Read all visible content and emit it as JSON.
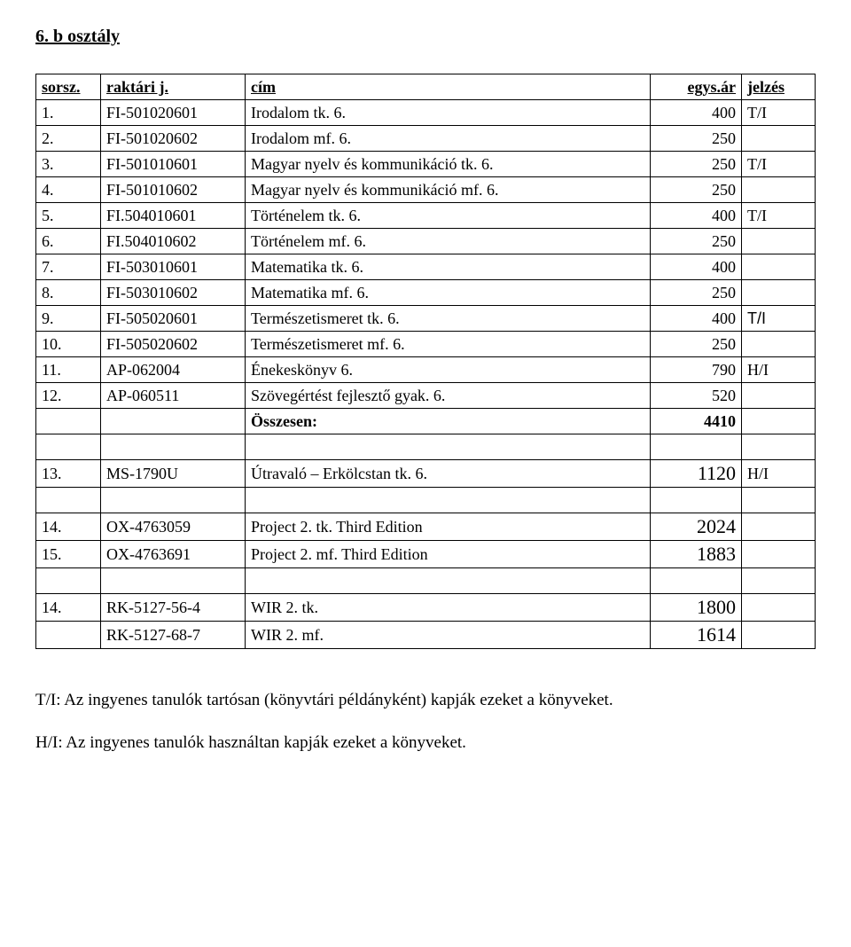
{
  "title": "6. b osztály",
  "headers": {
    "sorsz": "sorsz.",
    "raktari": "raktári j.",
    "cim": "cím",
    "ar": "egys.ár",
    "jelzes": "jelzés"
  },
  "rows": [
    {
      "sorsz": "1.",
      "raktari": "FI-501020601",
      "cim": "Irodalom tk. 6.",
      "ar": "400",
      "jelzes": "T/I"
    },
    {
      "sorsz": "2.",
      "raktari": "FI-501020602",
      "cim": "Irodalom mf. 6.",
      "ar": "250",
      "jelzes": ""
    },
    {
      "sorsz": "3.",
      "raktari": "FI-501010601",
      "cim": "Magyar nyelv és kommunikáció tk. 6.",
      "ar": "250",
      "jelzes": "T/I"
    },
    {
      "sorsz": "4.",
      "raktari": "FI-501010602",
      "cim": "Magyar nyelv és kommunikáció mf. 6.",
      "ar": "250",
      "jelzes": ""
    },
    {
      "sorsz": "5.",
      "raktari": "FI.504010601",
      "cim": "Történelem tk. 6.",
      "ar": "400",
      "jelzes": "T/I"
    },
    {
      "sorsz": "6.",
      "raktari": "FI.504010602",
      "cim": "Történelem mf. 6.",
      "ar": "250",
      "jelzes": ""
    },
    {
      "sorsz": "7.",
      "raktari": "FI-503010601",
      "cim": "Matematika tk. 6.",
      "ar": "400",
      "jelzes": ""
    },
    {
      "sorsz": "8.",
      "raktari": "FI-503010602",
      "cim": "Matematika mf. 6.",
      "ar": "250",
      "jelzes": ""
    },
    {
      "sorsz": "9.",
      "raktari": "FI-505020601",
      "cim": "Természetismeret tk. 6.",
      "ar": "400",
      "jelzes": "T/I",
      "jelzes_font": "arial"
    },
    {
      "sorsz": "10.",
      "raktari": "FI-505020602",
      "cim": "Természetismeret mf. 6.",
      "ar": "250",
      "jelzes": ""
    },
    {
      "sorsz": "11.",
      "raktari": "AP-062004",
      "cim": "Énekeskönyv 6.",
      "ar": "790",
      "jelzes": "H/I"
    },
    {
      "sorsz": "12.",
      "raktari": "AP-060511",
      "cim": "Szövegértést fejlesztő gyak. 6.",
      "ar": "520",
      "jelzes": ""
    }
  ],
  "total": {
    "label": "Összesen:",
    "value": "4410"
  },
  "section1": [
    {
      "sorsz": "13.",
      "raktari": "MS-1790U",
      "cim": "Útravaló – Erkölcstan tk. 6.",
      "ar": "1120",
      "jelzes": "H/I"
    }
  ],
  "section2": [
    {
      "sorsz": "14.",
      "raktari": "OX-4763059",
      "cim": "Project 2. tk. Third Edition",
      "ar": "2024",
      "jelzes": ""
    },
    {
      "sorsz": "15.",
      "raktari": "OX-4763691",
      "cim": "Project 2. mf. Third Edition",
      "ar": "1883",
      "jelzes": ""
    }
  ],
  "section3": [
    {
      "sorsz": "14.",
      "raktari": "RK-5127-56-4",
      "cim": "WIR 2. tk.",
      "ar": "1800",
      "jelzes": ""
    },
    {
      "sorsz": "",
      "raktari": "RK-5127-68-7",
      "cim": "WIR 2. mf.",
      "ar": "1614",
      "jelzes": ""
    }
  ],
  "notes": {
    "ti": "T/I: Az ingyenes tanulók tartósan (könyvtári példányként) kapják ezeket a könyveket.",
    "hi": "H/I: Az ingyenes tanulók használtan kapják ezeket a könyveket."
  }
}
